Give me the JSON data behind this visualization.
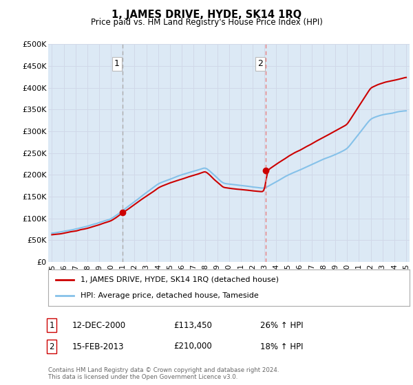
{
  "title": "1, JAMES DRIVE, HYDE, SK14 1RQ",
  "subtitle": "Price paid vs. HM Land Registry's House Price Index (HPI)",
  "ylabel_ticks": [
    "£0",
    "£50K",
    "£100K",
    "£150K",
    "£200K",
    "£250K",
    "£300K",
    "£350K",
    "£400K",
    "£450K",
    "£500K"
  ],
  "ytick_vals": [
    0,
    50000,
    100000,
    150000,
    200000,
    250000,
    300000,
    350000,
    400000,
    450000,
    500000
  ],
  "xlim_start": 1994.7,
  "xlim_end": 2025.3,
  "ylim": [
    0,
    500000
  ],
  "sale1_date": 2001.0,
  "sale1_price": 113450,
  "sale2_date": 2013.12,
  "sale2_price": 210000,
  "hpi_color": "#85c1e9",
  "price_color": "#cc0000",
  "vline1_color": "#aaaaaa",
  "vline2_color": "#e88080",
  "marker_color": "#cc0000",
  "grid_color": "#d0d8e8",
  "bg_color": "#dce9f5",
  "legend_entry1": "1, JAMES DRIVE, HYDE, SK14 1RQ (detached house)",
  "legend_entry2": "HPI: Average price, detached house, Tameside",
  "table_row1_num": "1",
  "table_row1_date": "12-DEC-2000",
  "table_row1_price": "£113,450",
  "table_row1_hpi": "26% ↑ HPI",
  "table_row2_num": "2",
  "table_row2_date": "15-FEB-2013",
  "table_row2_price": "£210,000",
  "table_row2_hpi": "18% ↑ HPI",
  "footer": "Contains HM Land Registry data © Crown copyright and database right 2024.\nThis data is licensed under the Open Government Licence v3.0.",
  "xticks": [
    1995,
    1996,
    1997,
    1998,
    1999,
    2000,
    2001,
    2002,
    2003,
    2004,
    2005,
    2006,
    2007,
    2008,
    2009,
    2010,
    2011,
    2012,
    2013,
    2014,
    2015,
    2016,
    2017,
    2018,
    2019,
    2020,
    2021,
    2022,
    2023,
    2024,
    2025
  ]
}
